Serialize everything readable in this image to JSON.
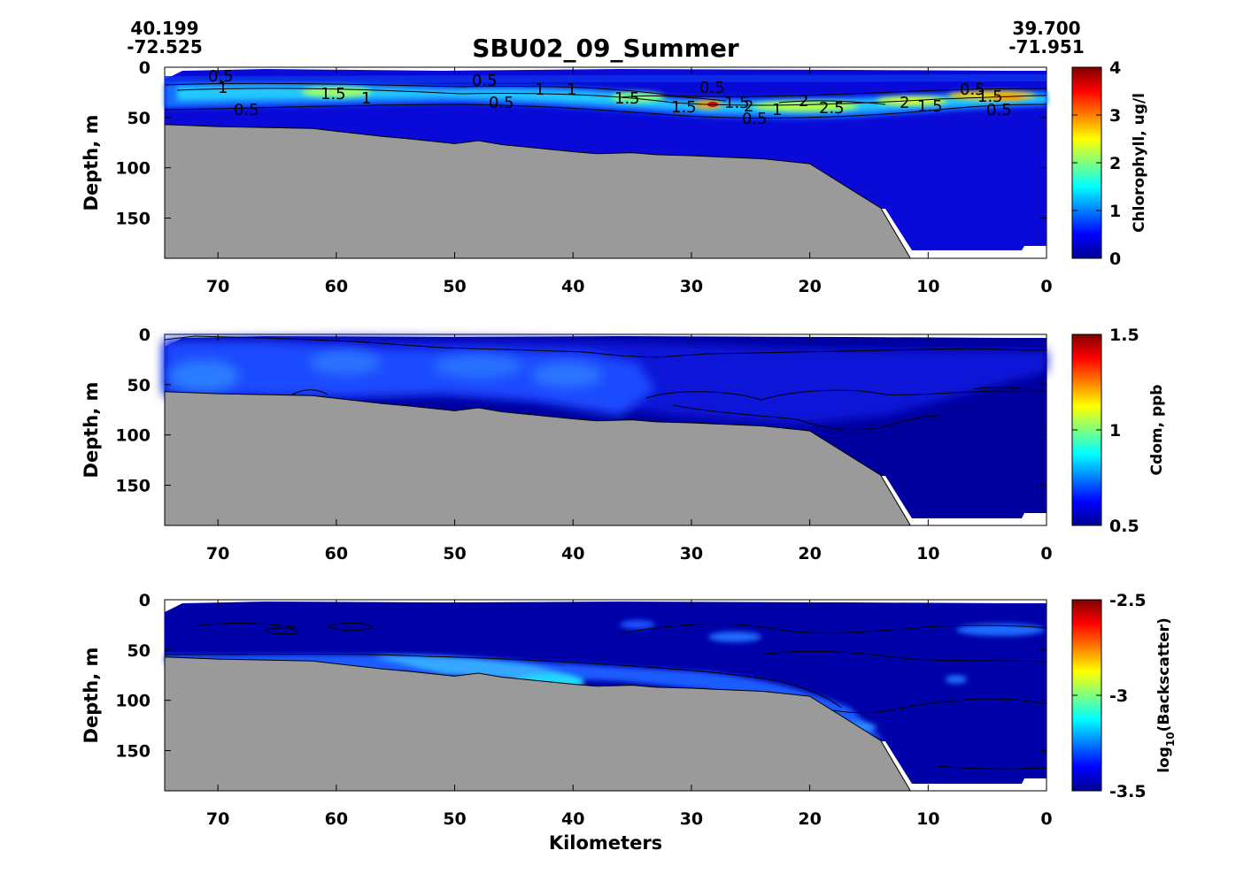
{
  "figure": {
    "title": "SBU02_09_Summer",
    "start_lat": "40.199",
    "start_lon": "-72.525",
    "end_lat": "39.700",
    "end_lon": "-71.951",
    "xlabel": "Kilometers"
  },
  "chart_data": [
    {
      "type": "heatmap",
      "variable": "chlorophyll",
      "ylabel": "Depth, m",
      "colorbar_label": "Chlorophyll, ug/l",
      "colorbar_ticks": [
        "0",
        "1",
        "2",
        "3",
        "4"
      ],
      "clim": [
        0,
        4
      ],
      "xlim": [
        74.5,
        0
      ],
      "ylim": [
        190,
        0
      ],
      "x_ticks": [
        "70",
        "60",
        "50",
        "40",
        "30",
        "20",
        "10",
        "0"
      ],
      "y_ticks": [
        "0",
        "50",
        "100",
        "150"
      ],
      "bottom_depth": [
        [
          74.5,
          57
        ],
        [
          70,
          59
        ],
        [
          62,
          61
        ],
        [
          56,
          69
        ],
        [
          54,
          71
        ],
        [
          50,
          76
        ],
        [
          48,
          73
        ],
        [
          46,
          77
        ],
        [
          40,
          84
        ],
        [
          38,
          86
        ],
        [
          35,
          85
        ],
        [
          33,
          87
        ],
        [
          30,
          88
        ],
        [
          28,
          89
        ],
        [
          24,
          91
        ],
        [
          20,
          96
        ],
        [
          14,
          140
        ],
        [
          11.5,
          190
        ]
      ],
      "contour_labels": [
        "0.5",
        "1",
        "0.5",
        "1.5",
        "1",
        "0.5",
        "1",
        "0.5",
        "1.5",
        "1",
        "1.5",
        "0.5",
        "1.5",
        "2",
        "0.5",
        "1",
        "2",
        "2.5",
        "2",
        "1.5",
        "0.5",
        "1.5",
        "0.5"
      ],
      "max_feature": {
        "x_km": 28,
        "depth_m": 38,
        "value": 3.8
      }
    },
    {
      "type": "heatmap",
      "variable": "cdom",
      "ylabel": "Depth, m",
      "colorbar_label": "Cdom, ppb",
      "colorbar_ticks": [
        "0.5",
        "1",
        "1.5"
      ],
      "clim": [
        0.5,
        1.5
      ],
      "xlim": [
        74.5,
        0
      ],
      "ylim": [
        190,
        0
      ],
      "x_ticks": [
        "70",
        "60",
        "50",
        "40",
        "30",
        "20",
        "10",
        "0"
      ],
      "y_ticks": [
        "0",
        "50",
        "100",
        "150"
      ]
    },
    {
      "type": "heatmap",
      "variable": "backscatter",
      "ylabel": "Depth, m",
      "colorbar_label_main": "log",
      "colorbar_label_sub": "10",
      "colorbar_label_rest": "(Backscatter)",
      "colorbar_ticks": [
        "-3.5",
        "-3",
        "-2.5"
      ],
      "clim": [
        -3.5,
        -2.5
      ],
      "xlim": [
        74.5,
        0
      ],
      "ylim": [
        190,
        0
      ],
      "x_ticks": [
        "70",
        "60",
        "50",
        "40",
        "30",
        "20",
        "10",
        "0"
      ],
      "y_ticks": [
        "0",
        "50",
        "100",
        "150"
      ]
    }
  ],
  "colors": {
    "seafloor": "#9a9a9a",
    "background": "#ffffff",
    "jet_low": "#00008f",
    "jet_high": "#800000"
  }
}
